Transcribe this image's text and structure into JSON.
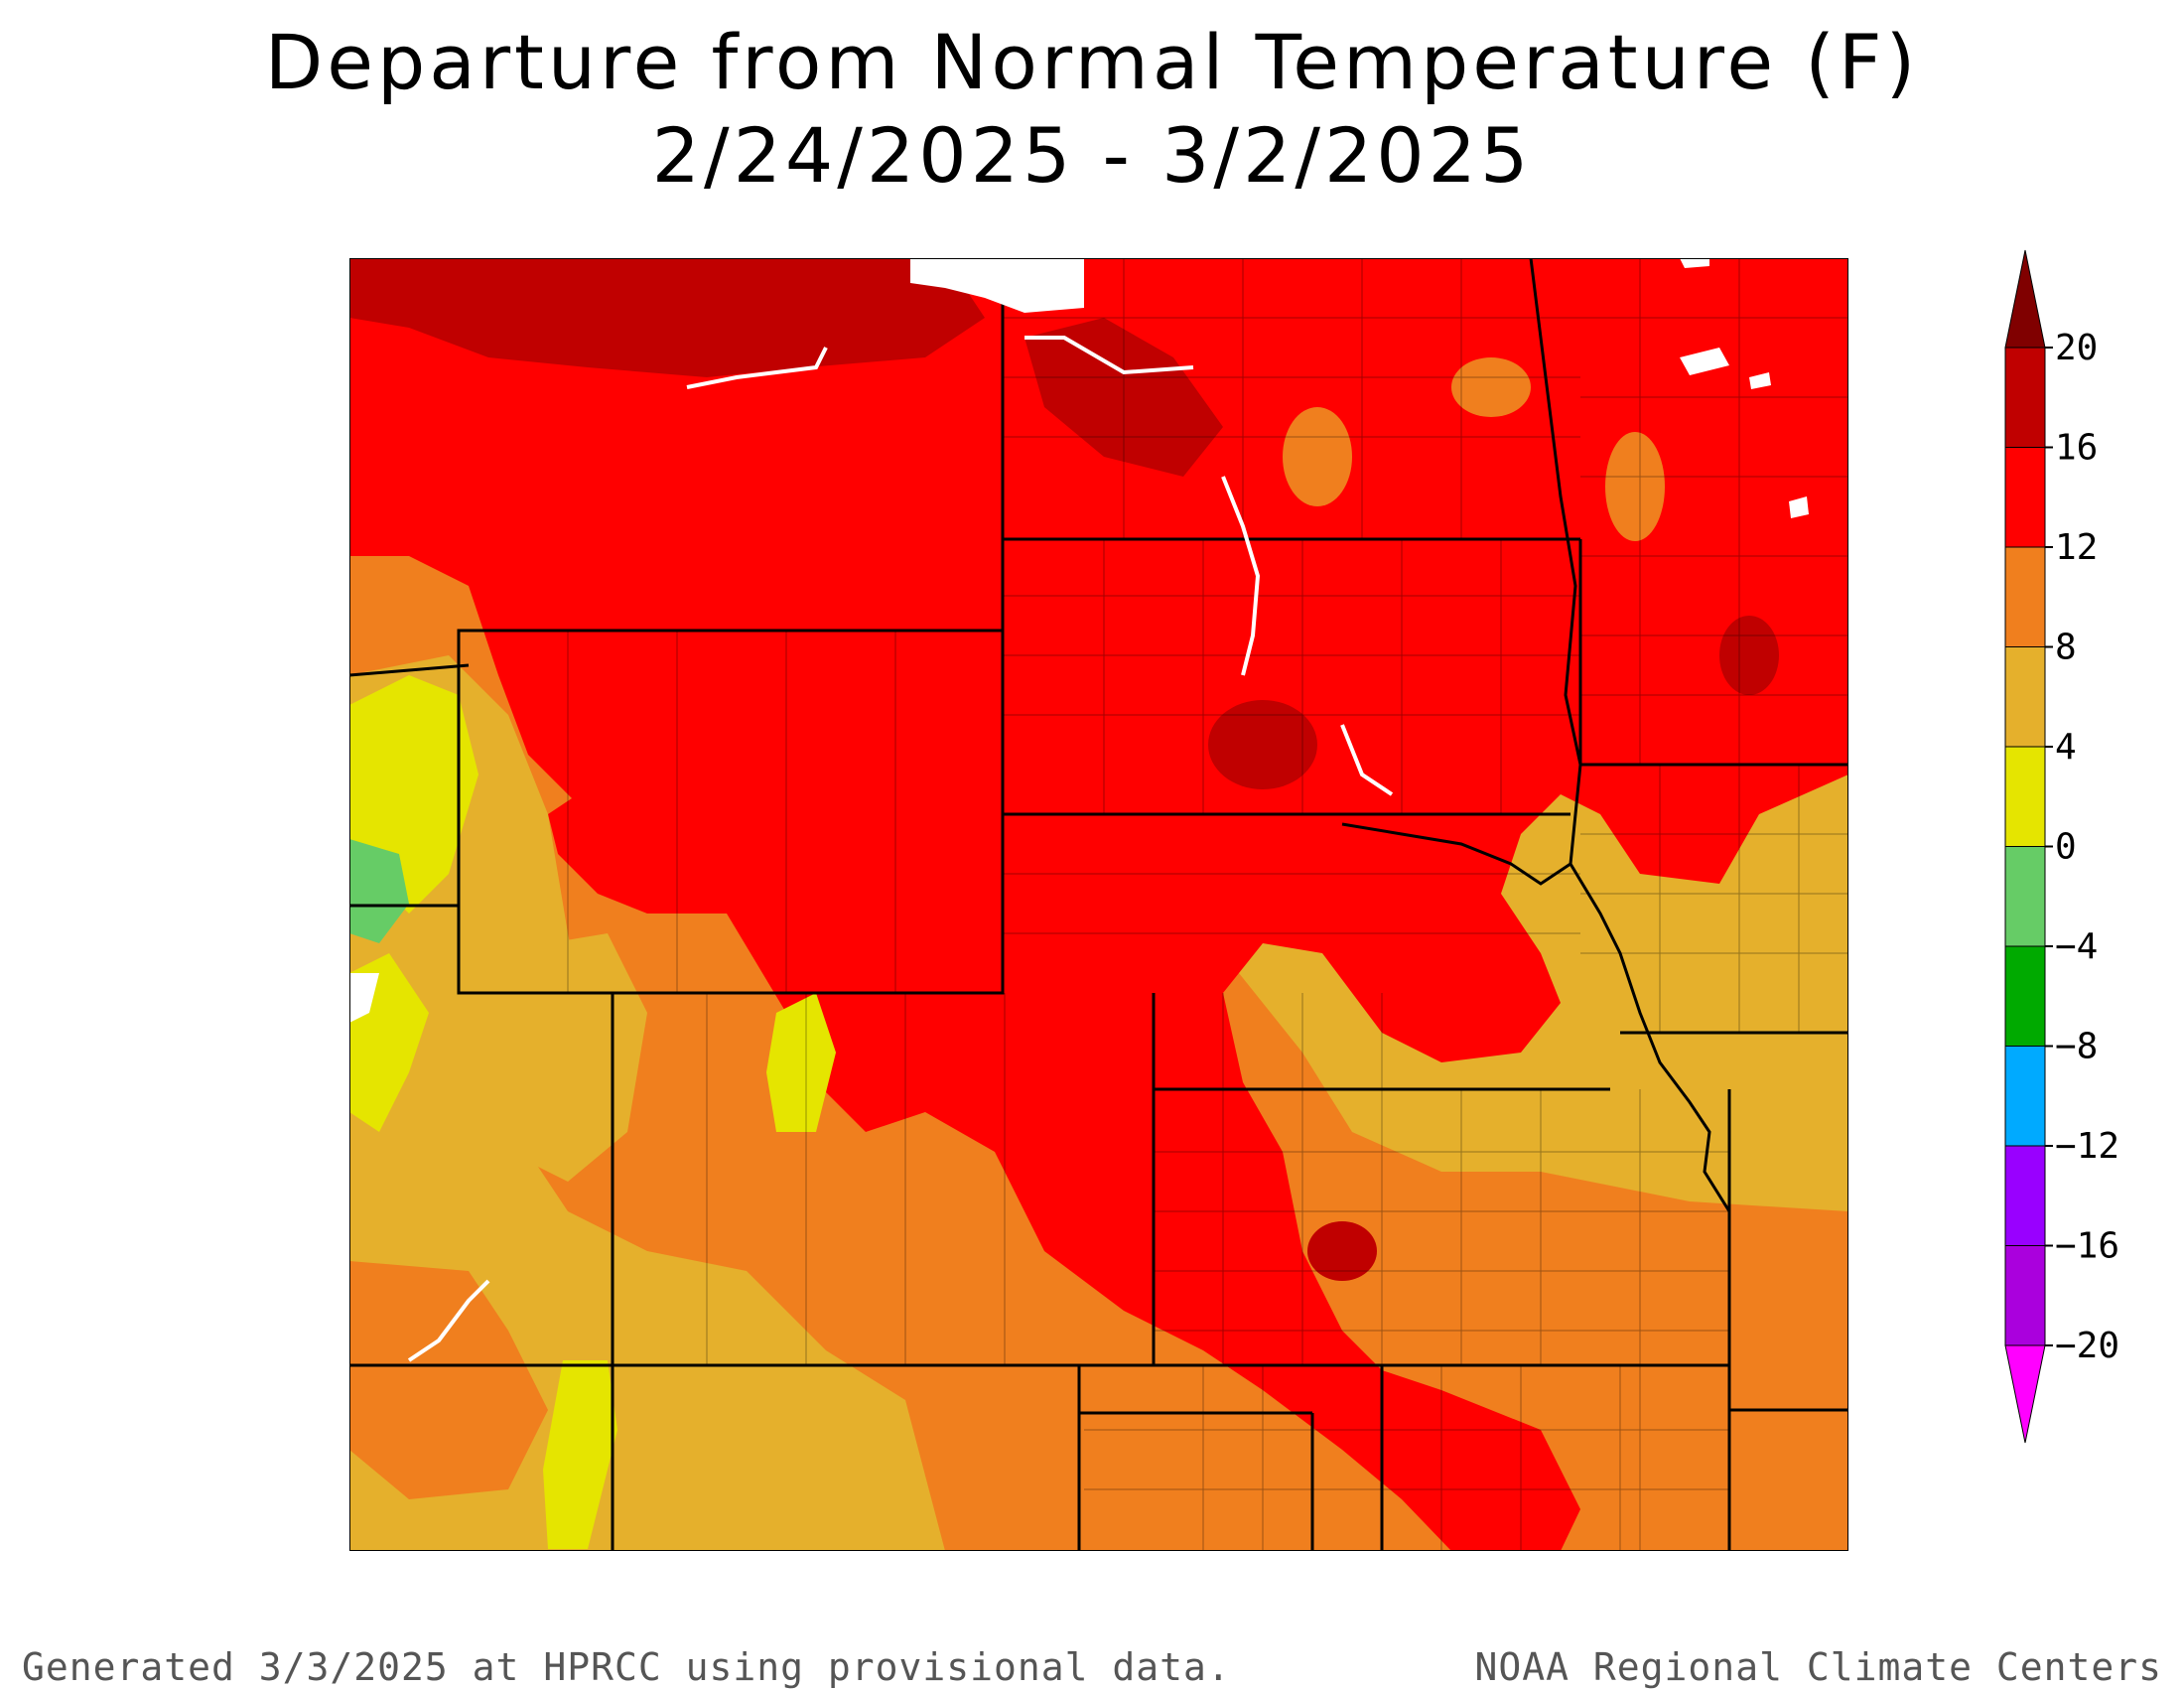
{
  "title": {
    "line1": "Departure from Normal Temperature (F)",
    "line2": "2/24/2025 - 3/2/2025"
  },
  "legend": {
    "units": "F",
    "bins": [
      {
        "min": 16,
        "max": 20,
        "color": "#c00000"
      },
      {
        "min": 12,
        "max": 16,
        "color": "#ff0000"
      },
      {
        "min": 8,
        "max": 12,
        "color": "#f07f1e"
      },
      {
        "min": 4,
        "max": 8,
        "color": "#e5b02c"
      },
      {
        "min": 0,
        "max": 4,
        "color": "#e5e500"
      },
      {
        "min": -4,
        "max": 0,
        "color": "#66cc66"
      },
      {
        "min": -8,
        "max": -4,
        "color": "#00aa00"
      },
      {
        "min": -12,
        "max": -8,
        "color": "#00aaff"
      },
      {
        "min": -16,
        "max": -12,
        "color": "#9900ff"
      },
      {
        "min": -20,
        "max": -16,
        "color": "#aa00dd"
      }
    ],
    "above_color": "#800000",
    "below_color": "#ff00ff",
    "tick_labels": [
      "20",
      "16",
      "12",
      "8",
      "4",
      "0",
      "−4",
      "−8",
      "−12",
      "−16",
      "−20"
    ]
  },
  "footer": {
    "left": "Generated 3/3/2025 at HPRCC using provisional data.",
    "right": "NOAA Regional Climate Centers"
  }
}
